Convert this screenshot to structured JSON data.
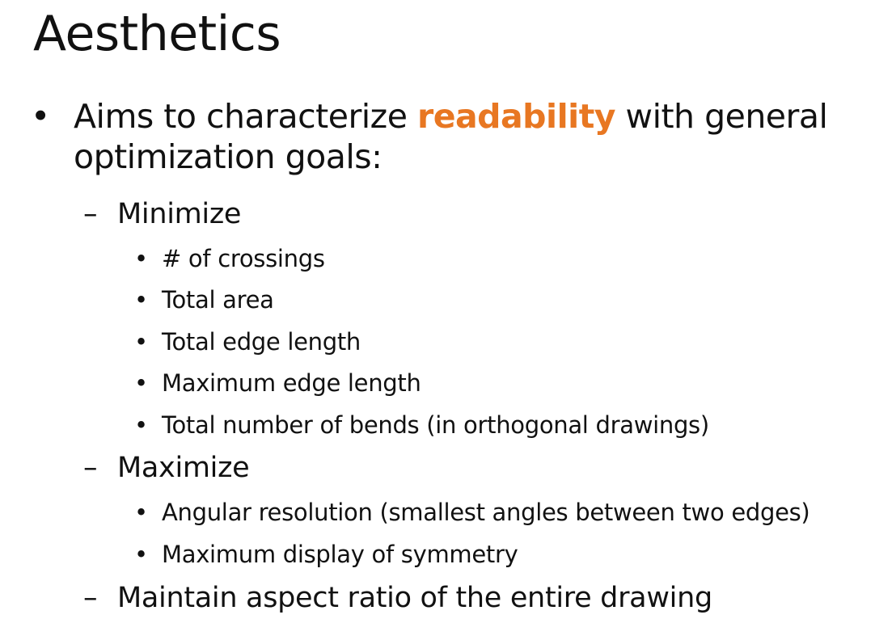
{
  "slide": {
    "title": "Aesthetics",
    "main_bullet": {
      "symbol": "•",
      "before": "Aims to characterize ",
      "emphasis": "readability",
      "after": " with general optimization goals:"
    },
    "dash_symbol": "–",
    "sub_bullet_symbol": "•",
    "minimize": {
      "label": "Minimize",
      "items": [
        "# of crossings",
        "Total area",
        "Total edge length",
        "Maximum edge length",
        "Total number of bends (in orthogonal drawings)"
      ]
    },
    "maximize": {
      "label": "Maximize",
      "items": [
        "Angular resolution (smallest angles between two edges)",
        "Maximum display of symmetry"
      ]
    },
    "maintain": {
      "label": "Maintain aspect ratio of the entire drawing"
    },
    "colors": {
      "text": "#111111",
      "emphasis": "#e87722",
      "background": "#ffffff"
    }
  }
}
